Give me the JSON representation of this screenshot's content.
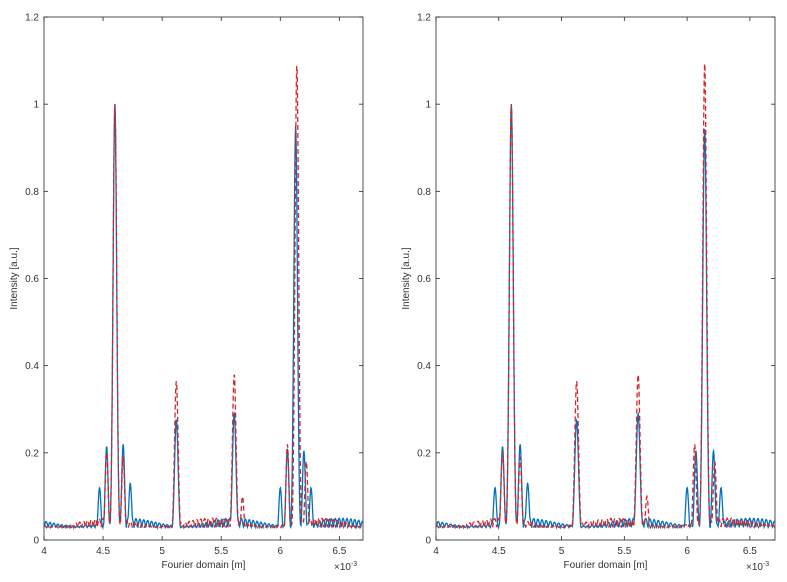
{
  "chart_data": [
    {
      "type": "line",
      "xlabel": "Fourier domain [m]",
      "ylabel": "Intensity [a.u.]",
      "x_exponent_label": "×10",
      "x_exponent_power": "-3",
      "xlim": [
        4.0,
        6.7
      ],
      "ylim": [
        0,
        1.2
      ],
      "x_ticks": [
        4,
        4.5,
        5,
        5.5,
        6,
        6.5
      ],
      "x_tick_labels": [
        "4",
        "4.5",
        "5",
        "5.5",
        "6",
        "6.5"
      ],
      "y_ticks": [
        0,
        0.2,
        0.4,
        0.6,
        0.8,
        1.0,
        1.2
      ],
      "y_tick_labels": [
        "0",
        "0.2",
        "0.4",
        "0.6",
        "0.8",
        "1",
        "1.2"
      ],
      "series": [
        {
          "style": "solid",
          "color": "#0072BD",
          "peaks": [
            {
              "x": 4.6,
              "y": 1.0
            },
            {
              "x": 5.12,
              "y": 0.275
            },
            {
              "x": 5.61,
              "y": 0.29
            },
            {
              "x": 6.13,
              "y": 0.95
            }
          ],
          "sidelobes": [
            {
              "x": 4.53,
              "y": 0.215
            },
            {
              "x": 4.67,
              "y": 0.22
            },
            {
              "x": 4.47,
              "y": 0.12
            },
            {
              "x": 4.73,
              "y": 0.13
            },
            {
              "x": 6.06,
              "y": 0.21
            },
            {
              "x": 6.2,
              "y": 0.205
            },
            {
              "x": 6.26,
              "y": 0.12
            },
            {
              "x": 6.0,
              "y": 0.12
            }
          ]
        },
        {
          "style": "dashed",
          "color": "#D62728",
          "peaks": [
            {
              "x": 4.6,
              "y": 1.0
            },
            {
              "x": 5.12,
              "y": 0.365
            },
            {
              "x": 5.61,
              "y": 0.38
            },
            {
              "x": 6.14,
              "y": 1.09
            }
          ],
          "sidelobes": [
            {
              "x": 4.53,
              "y": 0.2
            },
            {
              "x": 4.67,
              "y": 0.19
            },
            {
              "x": 6.06,
              "y": 0.22
            },
            {
              "x": 6.22,
              "y": 0.18
            },
            {
              "x": 5.68,
              "y": 0.1
            }
          ]
        }
      ]
    },
    {
      "type": "line",
      "xlabel": "Fourier domain [m]",
      "ylabel": "Intensity [a.u.]",
      "x_exponent_label": "×10",
      "x_exponent_power": "-3",
      "xlim": [
        4.0,
        6.7
      ],
      "ylim": [
        0,
        1.2
      ],
      "x_ticks": [
        4,
        4.5,
        5,
        5.5,
        6,
        6.5
      ],
      "x_tick_labels": [
        "4",
        "4.5",
        "5",
        "5.5",
        "6",
        "6.5"
      ],
      "y_ticks": [
        0,
        0.2,
        0.4,
        0.6,
        0.8,
        1.0,
        1.2
      ],
      "y_tick_labels": [
        "0",
        "0.2",
        "0.4",
        "0.6",
        "0.8",
        "1",
        "1.2"
      ],
      "series": [
        {
          "style": "solid",
          "color": "#0072BD",
          "peaks": [
            {
              "x": 4.6,
              "y": 1.0
            },
            {
              "x": 5.12,
              "y": 0.275
            },
            {
              "x": 5.61,
              "y": 0.29
            },
            {
              "x": 6.14,
              "y": 0.945
            }
          ],
          "sidelobes": [
            {
              "x": 4.53,
              "y": 0.215
            },
            {
              "x": 4.67,
              "y": 0.22
            },
            {
              "x": 4.47,
              "y": 0.12
            },
            {
              "x": 4.73,
              "y": 0.13
            },
            {
              "x": 6.07,
              "y": 0.205
            },
            {
              "x": 6.21,
              "y": 0.205
            },
            {
              "x": 6.27,
              "y": 0.12
            },
            {
              "x": 6.0,
              "y": 0.12
            }
          ]
        },
        {
          "style": "dashed",
          "color": "#D62728",
          "peaks": [
            {
              "x": 4.6,
              "y": 1.0
            },
            {
              "x": 5.12,
              "y": 0.365
            },
            {
              "x": 5.61,
              "y": 0.38
            },
            {
              "x": 6.14,
              "y": 1.095
            }
          ],
          "sidelobes": [
            {
              "x": 4.53,
              "y": 0.2
            },
            {
              "x": 4.67,
              "y": 0.19
            },
            {
              "x": 6.06,
              "y": 0.22
            },
            {
              "x": 6.22,
              "y": 0.18
            },
            {
              "x": 5.68,
              "y": 0.1
            }
          ]
        }
      ]
    }
  ]
}
